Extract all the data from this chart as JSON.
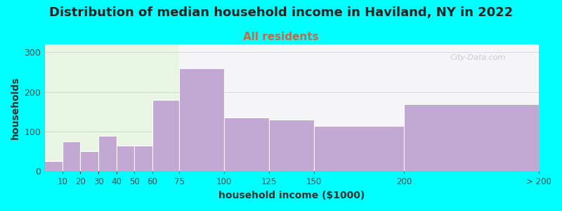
{
  "title": "Distribution of median household income in Haviland, NY in 2022",
  "subtitle": "All residents",
  "xlabel": "household income ($1000)",
  "ylabel": "households",
  "background_color": "#00FFFF",
  "bar_color": "#c4a8d4",
  "watermark": "City-Data.com",
  "title_fontsize": 13,
  "subtitle_fontsize": 11,
  "axis_label_fontsize": 10,
  "bar_left_edges": [
    0,
    10,
    20,
    30,
    40,
    50,
    60,
    75,
    100,
    125,
    150,
    200
  ],
  "bar_widths": [
    10,
    10,
    10,
    10,
    10,
    10,
    15,
    25,
    25,
    25,
    50,
    75
  ],
  "values": [
    25,
    75,
    50,
    90,
    65,
    65,
    180,
    260,
    135,
    130,
    115,
    170
  ],
  "xtick_positions": [
    10,
    20,
    30,
    40,
    50,
    60,
    75,
    100,
    125,
    150,
    200,
    275
  ],
  "xtick_labels": [
    "10",
    "20",
    "30",
    "40",
    "50",
    "60",
    "75",
    "100",
    "125",
    "150",
    "200",
    "> 200"
  ],
  "xlim": [
    0,
    275
  ],
  "ylim": [
    0,
    320
  ],
  "yticks": [
    0,
    100,
    200,
    300
  ],
  "split_x": 75,
  "bg_left_color": "#e8f5e2",
  "bg_right_color": "#f5f5f8"
}
